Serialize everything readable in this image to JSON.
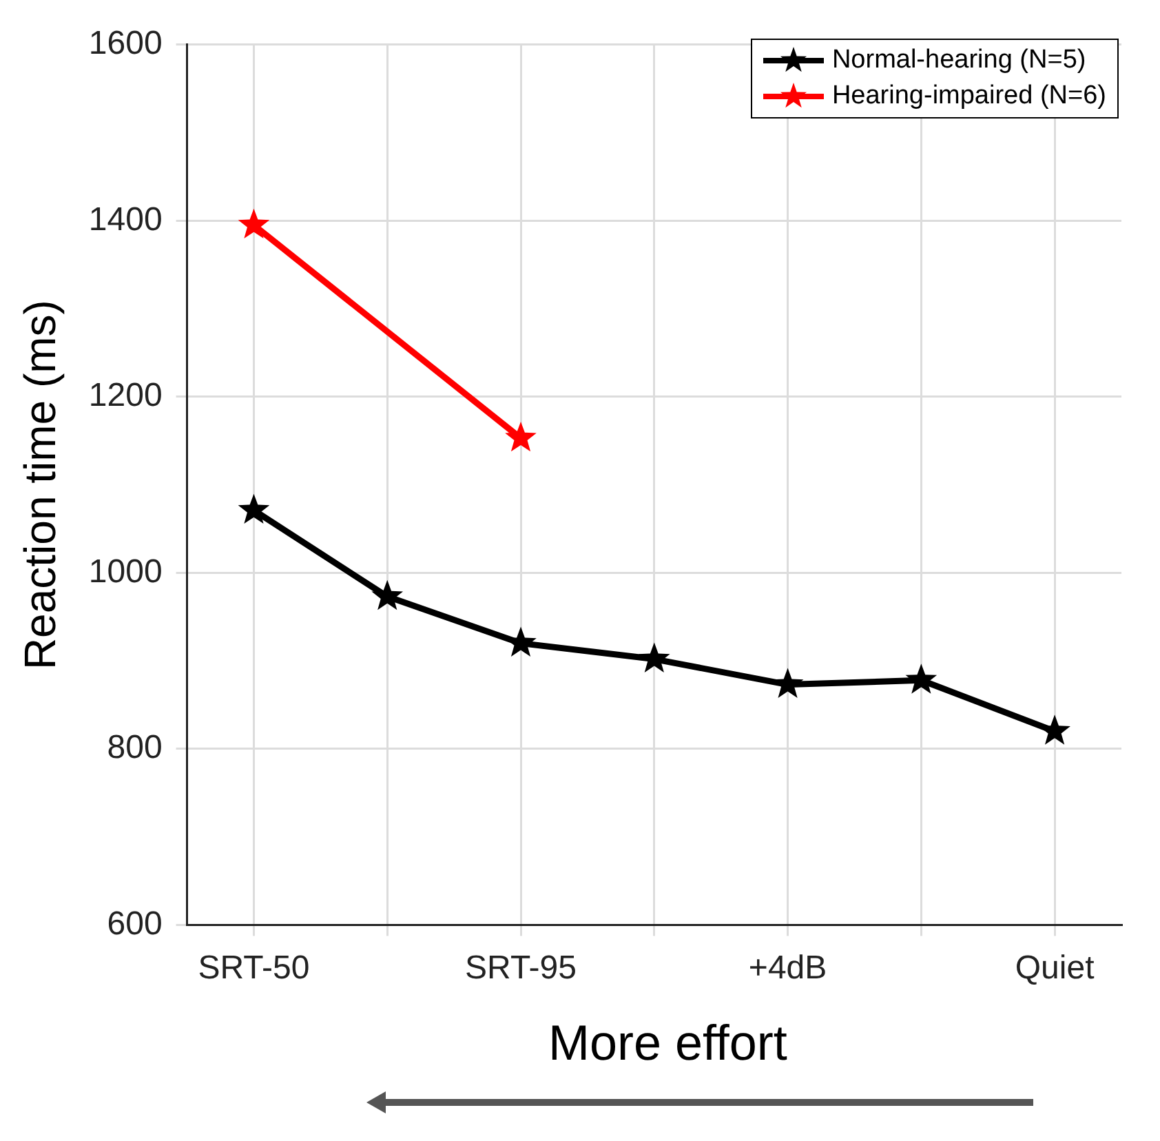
{
  "chart_data": {
    "type": "line",
    "ylabel": "Reaction time (ms)",
    "categories": [
      "SRT-50",
      null,
      "SRT-95",
      null,
      "+4dB",
      null,
      "Quiet"
    ],
    "ylim": [
      600,
      1600
    ],
    "yticks": [
      600,
      800,
      1000,
      1200,
      1400,
      1600
    ],
    "series": [
      {
        "name": "Normal-hearing (N=5)",
        "color": "#000000",
        "values": [
          1071,
          973,
          920,
          902,
          873,
          878,
          820
        ]
      },
      {
        "name": "Hearing-impaired (N=6)",
        "color": "#ff0000",
        "values": [
          1395,
          null,
          1153,
          null,
          null,
          null,
          null
        ]
      }
    ],
    "grid": true,
    "legend": "top right",
    "marker": "star",
    "line_style": "solid",
    "annotations": [
      "More effort"
    ]
  }
}
